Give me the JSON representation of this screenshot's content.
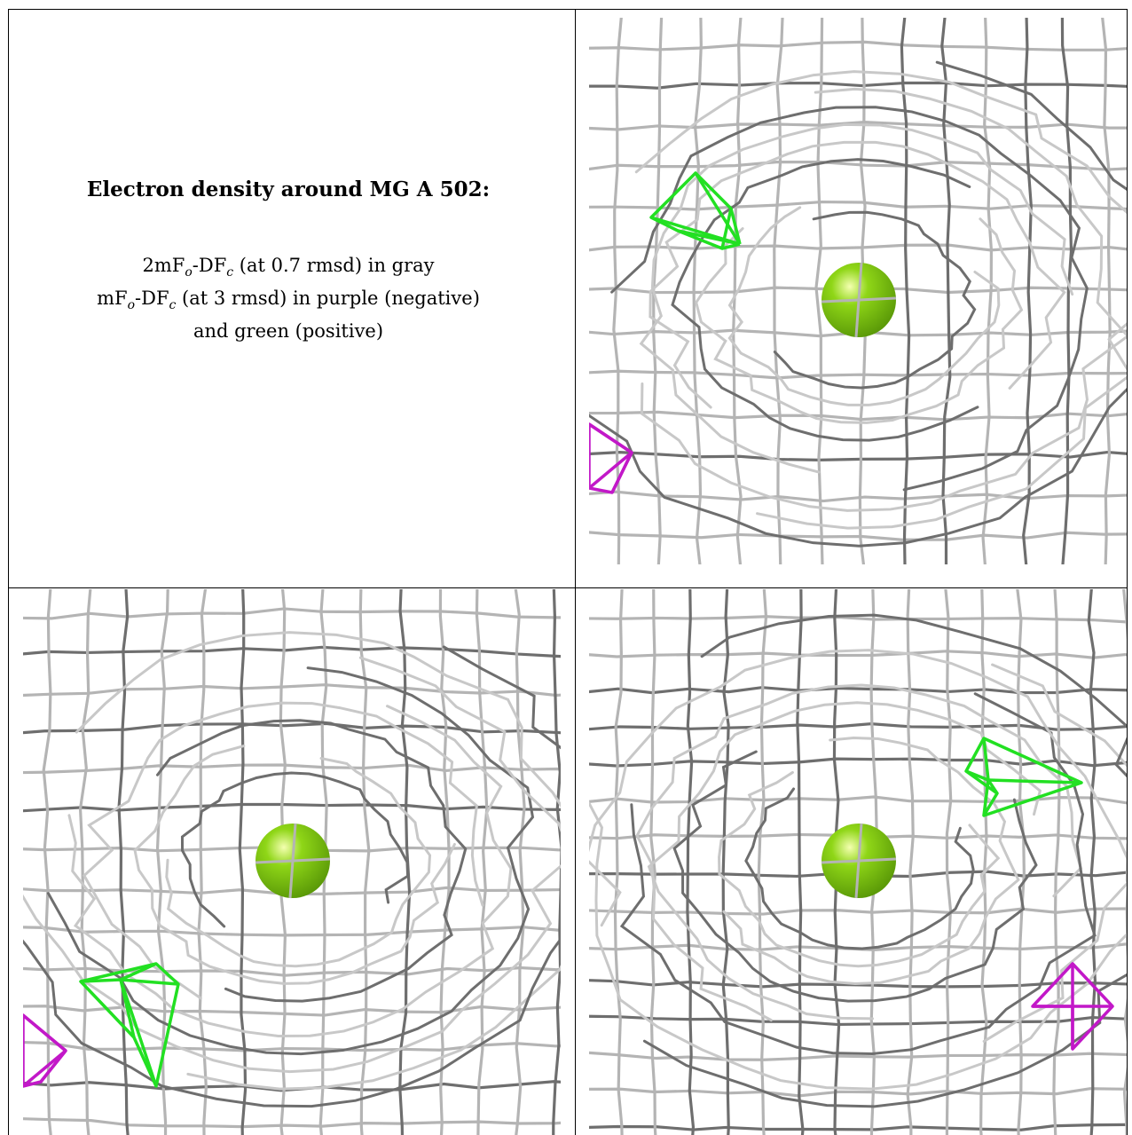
{
  "caption": {
    "title": "Electron density around MG A 502:",
    "line1_pre": "2mF",
    "line1_sub1": "o",
    "line1_mid": "-DF",
    "line1_sub2": "c",
    "line1_post": " (at 0.7 rmsd) in gray",
    "line2_pre": "mF",
    "line2_sub1": "o",
    "line2_mid": "-DF",
    "line2_sub2": "c",
    "line2_post": " (at 3 rmsd) in purple (negative)",
    "line3": "and green (positive)"
  },
  "colors": {
    "map_2fofc": "#b4b4b4",
    "map_2fofc_dark": "#6e6e6e",
    "map_fofc_positive": "#22e022",
    "map_fofc_negative": "#c218c8",
    "magnesium": "#8fd617"
  },
  "panels": [
    {
      "view": "view-1"
    },
    {
      "view": "view-2"
    },
    {
      "view": "view-3"
    }
  ]
}
